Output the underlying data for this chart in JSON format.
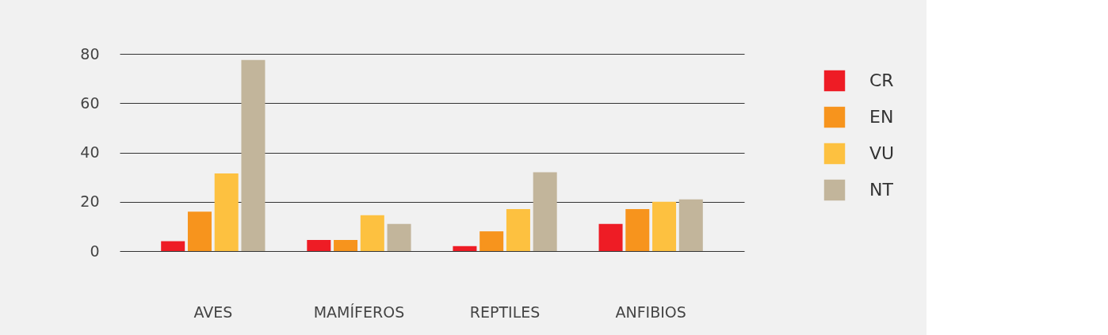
{
  "chart_data": {
    "type": "bar",
    "categories": [
      "AVES",
      "MAMÍFEROS",
      "REPTILES",
      "ANFIBIOS"
    ],
    "series": [
      {
        "name": "CR",
        "color": "#ee1c25",
        "values": [
          4,
          4.5,
          2,
          11
        ]
      },
      {
        "name": "EN",
        "color": "#f7941d",
        "values": [
          16,
          4.5,
          8,
          17
        ]
      },
      {
        "name": "VU",
        "color": "#fdc140",
        "values": [
          31.5,
          14.5,
          17,
          20
        ]
      },
      {
        "name": "NT",
        "color": "#c2b59b",
        "values": [
          77.5,
          11,
          32,
          21
        ]
      }
    ],
    "ylim": [
      0,
      80
    ],
    "yticks": [
      0,
      20,
      40,
      60,
      80
    ],
    "grid": "y",
    "legend": "right"
  }
}
